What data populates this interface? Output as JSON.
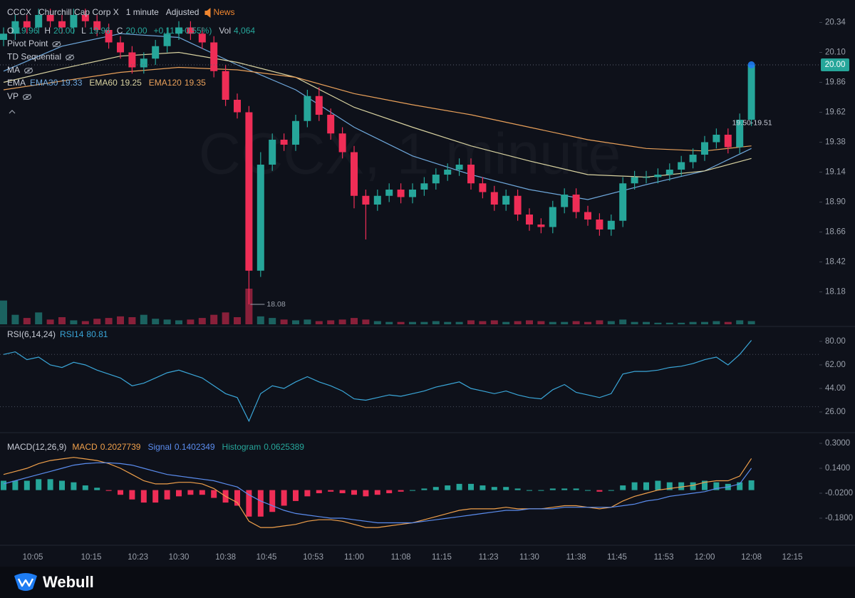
{
  "header": {
    "symbol": "CCCX",
    "name": "Churchill Cap Corp X",
    "interval": "1 minute",
    "adjust": "Adjusted",
    "news": "News",
    "ohlc": [
      [
        "O",
        "19.96"
      ],
      [
        "H",
        "20.00"
      ],
      [
        "L",
        "19.96"
      ],
      [
        "C",
        "20.00"
      ]
    ],
    "change": "+0.11 (+0.55%)",
    "volume": [
      "Vol",
      "4,064"
    ],
    "indicators": [
      "Pivot Point",
      "TD Sequential",
      "MA",
      "EMA",
      "VP"
    ]
  },
  "footer": {
    "brand": "Webull"
  },
  "chart_data": [
    {
      "type": "candlestick",
      "watermark": "CCCX, 1 minute",
      "colors": {
        "up": "#26a69a",
        "down": "#ef2d56"
      },
      "x": [
        "10:00",
        "10:02",
        "10:04",
        "10:06",
        "10:08",
        "10:10",
        "10:12",
        "10:14",
        "10:16",
        "10:18",
        "10:20",
        "10:22",
        "10:24",
        "10:26",
        "10:28",
        "10:30",
        "10:32",
        "10:34",
        "10:36",
        "10:38",
        "10:40",
        "10:42",
        "10:44",
        "10:46",
        "10:48",
        "10:50",
        "10:52",
        "10:54",
        "10:56",
        "10:58",
        "11:00",
        "11:02",
        "11:04",
        "11:06",
        "11:08",
        "11:10",
        "11:12",
        "11:14",
        "11:16",
        "11:18",
        "11:20",
        "11:22",
        "11:24",
        "11:26",
        "11:28",
        "11:30",
        "11:32",
        "11:34",
        "11:36",
        "11:38",
        "11:40",
        "11:42",
        "11:44",
        "11:46",
        "11:48",
        "11:50",
        "11:52",
        "11:54",
        "11:56",
        "11:58",
        "12:00",
        "12:02",
        "12:04",
        "12:06",
        "12:08"
      ],
      "open": [
        20.2,
        20.25,
        20.35,
        20.3,
        20.4,
        20.35,
        20.3,
        20.4,
        20.35,
        20.28,
        20.18,
        20.1,
        19.98,
        20.05,
        20.15,
        20.25,
        20.3,
        20.25,
        20.18,
        19.95,
        19.72,
        19.62,
        18.35,
        19.2,
        19.4,
        19.36,
        19.55,
        19.75,
        19.6,
        19.45,
        19.3,
        18.95,
        18.88,
        18.95,
        19.0,
        18.94,
        19.0,
        19.05,
        19.12,
        19.16,
        19.2,
        19.05,
        18.98,
        18.88,
        18.95,
        18.8,
        18.72,
        18.7,
        18.86,
        18.96,
        18.82,
        18.76,
        18.68,
        18.75,
        19.05,
        19.1,
        19.1,
        19.12,
        19.16,
        19.22,
        19.28,
        19.38,
        19.44,
        19.34,
        19.56
      ],
      "high": [
        20.3,
        20.4,
        20.4,
        20.45,
        20.45,
        20.4,
        20.45,
        20.45,
        20.4,
        20.33,
        20.23,
        20.15,
        20.1,
        20.2,
        20.3,
        20.35,
        20.35,
        20.3,
        20.23,
        20.0,
        19.77,
        19.67,
        19.3,
        19.45,
        19.45,
        19.6,
        19.8,
        19.82,
        19.65,
        19.5,
        19.35,
        19.0,
        19.0,
        19.05,
        19.05,
        19.05,
        19.1,
        19.17,
        19.21,
        19.25,
        19.25,
        19.1,
        19.03,
        19.0,
        19.0,
        18.85,
        18.77,
        18.91,
        19.01,
        19.01,
        18.87,
        18.81,
        18.8,
        19.1,
        19.15,
        19.15,
        19.17,
        19.21,
        19.27,
        19.33,
        19.43,
        19.49,
        19.49,
        19.61,
        20.0
      ],
      "low": [
        20.15,
        20.2,
        20.25,
        20.25,
        20.3,
        20.25,
        20.25,
        20.3,
        20.23,
        20.13,
        20.05,
        19.93,
        19.93,
        20.0,
        20.1,
        20.2,
        20.2,
        20.13,
        19.9,
        19.67,
        19.57,
        18.08,
        18.3,
        19.15,
        19.31,
        19.31,
        19.5,
        19.55,
        19.4,
        19.25,
        18.85,
        18.6,
        18.83,
        18.9,
        18.89,
        18.89,
        18.95,
        19.0,
        19.07,
        19.11,
        19.0,
        18.93,
        18.83,
        18.83,
        18.75,
        18.67,
        18.65,
        18.65,
        18.81,
        18.77,
        18.71,
        18.63,
        18.63,
        18.7,
        19.0,
        19.05,
        19.05,
        19.07,
        19.11,
        19.17,
        19.23,
        19.33,
        19.29,
        19.29,
        19.51
      ],
      "close": [
        20.25,
        20.35,
        20.3,
        20.4,
        20.35,
        20.3,
        20.4,
        20.35,
        20.28,
        20.18,
        20.1,
        19.98,
        20.05,
        20.15,
        20.25,
        20.3,
        20.25,
        20.18,
        19.95,
        19.72,
        19.62,
        18.35,
        19.2,
        19.4,
        19.36,
        19.55,
        19.75,
        19.6,
        19.45,
        19.3,
        18.95,
        18.88,
        18.95,
        19.0,
        18.94,
        19.0,
        19.05,
        19.12,
        19.16,
        19.2,
        19.05,
        18.98,
        18.88,
        18.95,
        18.8,
        18.72,
        18.7,
        18.86,
        18.96,
        18.82,
        18.76,
        18.68,
        18.75,
        19.05,
        19.1,
        19.1,
        19.12,
        19.16,
        19.22,
        19.28,
        19.38,
        19.44,
        19.34,
        19.56,
        20.0
      ],
      "volume": [
        30000,
        12000,
        8000,
        15000,
        6000,
        9000,
        5000,
        4000,
        7000,
        8000,
        10000,
        9000,
        12000,
        7000,
        6000,
        5000,
        6000,
        8000,
        12000,
        15000,
        9000,
        45000,
        10000,
        8000,
        6000,
        5000,
        6000,
        4000,
        5000,
        6000,
        8000,
        6000,
        4000,
        3000,
        3000,
        3000,
        3000,
        4000,
        3000,
        3000,
        5000,
        4000,
        5000,
        3000,
        4000,
        5000,
        4000,
        3000,
        3000,
        4000,
        3000,
        5000,
        4000,
        6000,
        3000,
        3000,
        2000,
        2000,
        2000,
        3000,
        3000,
        4000,
        3000,
        5000,
        4064
      ],
      "series": [
        {
          "name": "EMA30",
          "color": "#6fa8dc",
          "x": [
            "10:00",
            "10:10",
            "10:20",
            "10:30",
            "10:40",
            "10:50",
            "11:00",
            "11:10",
            "11:20",
            "11:30",
            "11:40",
            "11:50",
            "12:00",
            "12:08"
          ],
          "values": [
            19.95,
            20.15,
            20.25,
            20.22,
            20.0,
            19.8,
            19.5,
            19.27,
            19.12,
            19.0,
            18.92,
            19.04,
            19.15,
            19.33
          ]
        },
        {
          "name": "EMA60",
          "color": "#d8d2a0",
          "x": [
            "10:00",
            "10:10",
            "10:20",
            "10:30",
            "10:40",
            "10:50",
            "11:00",
            "11:10",
            "11:20",
            "11:30",
            "11:40",
            "11:50",
            "12:00",
            "12:08"
          ],
          "values": [
            19.86,
            19.97,
            20.07,
            20.1,
            20.02,
            19.9,
            19.66,
            19.5,
            19.35,
            19.23,
            19.12,
            19.1,
            19.15,
            19.25
          ]
        },
        {
          "name": "EMA120",
          "color": "#e8a05a",
          "x": [
            "10:00",
            "10:10",
            "10:20",
            "10:30",
            "10:40",
            "10:50",
            "11:00",
            "11:10",
            "11:20",
            "11:30",
            "11:40",
            "11:50",
            "12:00",
            "12:08"
          ],
          "values": [
            19.8,
            19.87,
            19.94,
            19.98,
            19.96,
            19.9,
            19.77,
            19.68,
            19.6,
            19.5,
            19.4,
            19.33,
            19.31,
            19.35
          ]
        }
      ],
      "ylim": [
        17.92,
        20.52
      ],
      "yticks": [
        20.34,
        {
          "value": 20.1,
          "label": "20.10"
        },
        19.86,
        19.62,
        19.38,
        19.14,
        {
          "value": 18.9,
          "label": "18.90"
        },
        18.66,
        18.42,
        18.18
      ],
      "xticks": [
        "10:05",
        "10:15",
        "10:23",
        "10:30",
        "10:38",
        "10:45",
        "10:53",
        "11:00",
        "11:08",
        "11:15",
        "11:23",
        "11:30",
        "11:38",
        "11:45",
        "11:53",
        "12:00",
        "12:08",
        "12:15"
      ],
      "last_price": {
        "value": 20,
        "label": "20.00"
      },
      "low_label": 18.08,
      "annotation": "19.50-19.51",
      "grid": false
    },
    {
      "type": "line",
      "title": "RSI(6,14,24)",
      "series": [
        {
          "name": "RSI14",
          "color": "#3aa6d8",
          "values": [
            70,
            72,
            66,
            68,
            62,
            60,
            64,
            62,
            58,
            55,
            52,
            46,
            48,
            52,
            56,
            58,
            55,
            52,
            46,
            40,
            37,
            19,
            40,
            46,
            44,
            49,
            53,
            49,
            46,
            42,
            36,
            35,
            37,
            39,
            38,
            40,
            42,
            45,
            47,
            49,
            44,
            42,
            40,
            42,
            39,
            37,
            36,
            43,
            47,
            41,
            39,
            37,
            40,
            55,
            57,
            57,
            58,
            60,
            61,
            63,
            66,
            68,
            62,
            70,
            80.81
          ]
        }
      ],
      "levels": [
        70,
        30
      ],
      "ylim": [
        14,
        87.6
      ],
      "yticks": [
        {
          "value": 80,
          "label": "80.00"
        },
        {
          "value": 62,
          "label": "62.00"
        },
        {
          "value": 44,
          "label": "44.00"
        },
        {
          "value": 26,
          "label": "26.00"
        }
      ]
    },
    {
      "type": "macd",
      "title": "MACD(12,26,9)",
      "series": [
        {
          "name": "MACD",
          "color": "#f0a04b",
          "values": [
            0.1,
            0.12,
            0.14,
            0.17,
            0.19,
            0.2,
            0.21,
            0.2,
            0.19,
            0.17,
            0.14,
            0.1,
            0.06,
            0.04,
            0.04,
            0.05,
            0.05,
            0.04,
            0.01,
            -0.04,
            -0.08,
            -0.2,
            -0.24,
            -0.24,
            -0.23,
            -0.22,
            -0.2,
            -0.19,
            -0.19,
            -0.2,
            -0.22,
            -0.24,
            -0.24,
            -0.23,
            -0.22,
            -0.21,
            -0.19,
            -0.17,
            -0.15,
            -0.13,
            -0.12,
            -0.12,
            -0.12,
            -0.11,
            -0.12,
            -0.12,
            -0.12,
            -0.11,
            -0.1,
            -0.1,
            -0.11,
            -0.12,
            -0.11,
            -0.07,
            -0.04,
            -0.02,
            0.0,
            0.01,
            0.02,
            0.03,
            0.05,
            0.06,
            0.06,
            0.09,
            0.2027739
          ]
        },
        {
          "name": "Signal",
          "color": "#5b8def",
          "values": [
            0.04,
            0.06,
            0.08,
            0.1,
            0.12,
            0.14,
            0.16,
            0.17,
            0.175,
            0.175,
            0.17,
            0.16,
            0.14,
            0.12,
            0.1,
            0.09,
            0.08,
            0.07,
            0.06,
            0.04,
            0.02,
            -0.03,
            -0.07,
            -0.1,
            -0.13,
            -0.15,
            -0.16,
            -0.17,
            -0.18,
            -0.18,
            -0.19,
            -0.2,
            -0.21,
            -0.21,
            -0.21,
            -0.21,
            -0.2,
            -0.19,
            -0.18,
            -0.17,
            -0.16,
            -0.15,
            -0.14,
            -0.13,
            -0.13,
            -0.12,
            -0.12,
            -0.12,
            -0.11,
            -0.11,
            -0.11,
            -0.11,
            -0.11,
            -0.1,
            -0.09,
            -0.07,
            -0.06,
            -0.04,
            -0.03,
            -0.02,
            -0.01,
            0.01,
            0.02,
            0.04,
            0.1402349
          ]
        },
        {
          "name": "Histogram",
          "color": "#26a69a",
          "down_color": "#ef2d56",
          "values": [
            0.06,
            0.06,
            0.06,
            0.07,
            0.07,
            0.06,
            0.05,
            0.03,
            0.015,
            -0.005,
            -0.03,
            -0.06,
            -0.08,
            -0.08,
            -0.06,
            -0.04,
            -0.03,
            -0.03,
            -0.05,
            -0.08,
            -0.1,
            -0.17,
            -0.17,
            -0.14,
            -0.1,
            -0.07,
            -0.04,
            -0.02,
            -0.01,
            -0.02,
            -0.03,
            -0.04,
            -0.03,
            -0.02,
            -0.01,
            0.0,
            0.01,
            0.02,
            0.03,
            0.04,
            0.04,
            0.03,
            0.02,
            0.02,
            0.01,
            0.0,
            0.0,
            0.01,
            0.01,
            0.01,
            0.0,
            -0.01,
            0.0,
            0.03,
            0.05,
            0.05,
            0.06,
            0.05,
            0.05,
            0.05,
            0.06,
            0.05,
            0.04,
            0.05,
            0.0625389
          ]
        }
      ],
      "ylim": [
        -0.331,
        0.332
      ],
      "yticks": [
        {
          "value": 0.3,
          "label": "0.3000"
        },
        {
          "value": 0.14,
          "label": "0.1400"
        },
        {
          "value": -0.02,
          "label": "-0.0200"
        },
        {
          "value": -0.18,
          "label": "-0.1800"
        }
      ]
    }
  ]
}
